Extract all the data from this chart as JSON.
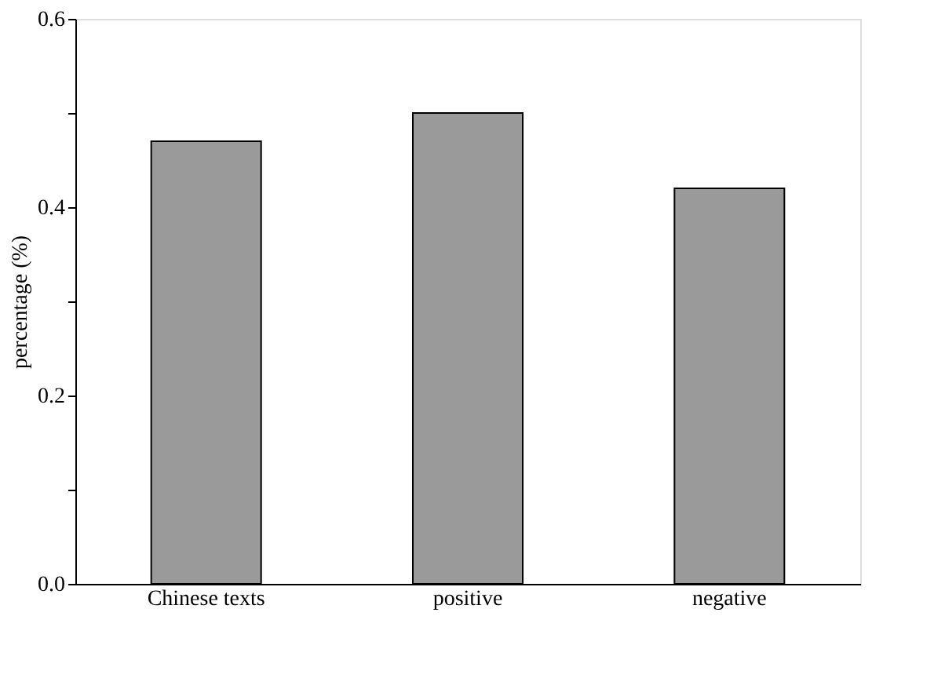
{
  "chart_data": {
    "type": "bar",
    "ylabel": "percentage (%)",
    "categories": [
      "Chinese texts",
      "positive",
      "negative"
    ],
    "values": [
      0.47,
      0.5,
      0.42
    ],
    "color": "#9a9a9a",
    "ylim": [
      0,
      0.6
    ],
    "yticks": [
      {
        "value": 0,
        "label": "0.0"
      },
      {
        "value": 0.1,
        "label": null
      },
      {
        "value": 0.2,
        "label": "0.2"
      },
      {
        "value": 0.3,
        "label": null
      },
      {
        "value": 0.4,
        "label": "0.4"
      },
      {
        "value": 0.5,
        "label": null
      },
      {
        "value": 0.6,
        "label": "0.6"
      }
    ],
    "grid": false
  }
}
